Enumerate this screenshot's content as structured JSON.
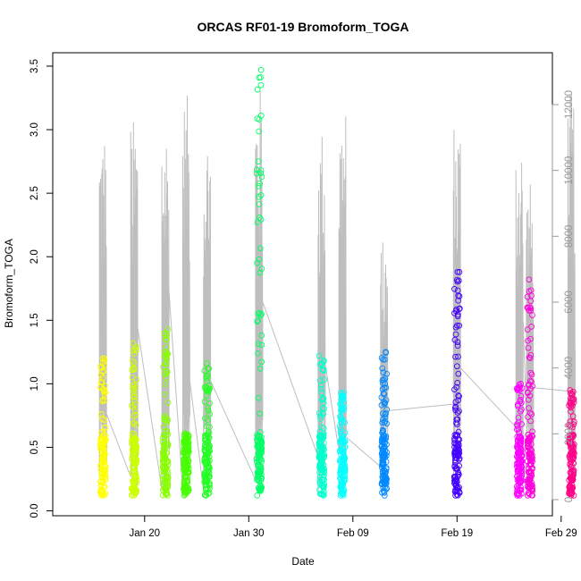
{
  "chart_data": {
    "type": "scatter",
    "title": "ORCAS RF01-19 Bromoform_TOGA",
    "xlabel": "Date",
    "ylabel": "Bromoform_TOGA",
    "x_ticks": [
      "Jan 20",
      "Jan 30",
      "Feb 09",
      "Feb 19",
      "Feb 29"
    ],
    "y_ticks": [
      "0.0",
      "0.5",
      "1.0",
      "1.5",
      "2.0",
      "2.5",
      "3.0",
      "3.5"
    ],
    "y_ticks_right": [
      "0",
      "2000",
      "4000",
      "6000",
      "8000",
      "10000",
      "12000"
    ],
    "ylim": [
      0,
      3.6
    ],
    "ylim_right": [
      0,
      12800
    ],
    "colors": {
      "altitude_trace": "#bebebe",
      "axis": "#000000",
      "right_axis": "#999999"
    },
    "series": [
      {
        "date": "Jan 16",
        "color": "#ffff00",
        "min": 0.12,
        "max": 1.2
      },
      {
        "date": "Jan 19",
        "color": "#ccff00",
        "min": 0.12,
        "max": 1.32
      },
      {
        "date": "Jan 22",
        "color": "#88ff00",
        "min": 0.12,
        "max": 1.43
      },
      {
        "date": "Jan 24",
        "color": "#44ff00",
        "min": 0.12,
        "max": 0.61
      },
      {
        "date": "Jan 26",
        "color": "#22ff22",
        "min": 0.12,
        "max": 1.16
      },
      {
        "date": "Jan 31",
        "color": "#00ff66",
        "min": 0.12,
        "max": 3.47
      },
      {
        "date": "Feb 06",
        "color": "#00ffcc",
        "min": 0.12,
        "max": 1.22
      },
      {
        "date": "Feb 08",
        "color": "#00ffff",
        "min": 0.12,
        "max": 0.93
      },
      {
        "date": "Feb 12",
        "color": "#0088ff",
        "min": 0.12,
        "max": 1.25
      },
      {
        "date": "Feb 19",
        "color": "#4400ff",
        "min": 0.12,
        "max": 1.88
      },
      {
        "date": "Feb 25",
        "color": "#ff00ff",
        "min": 0.12,
        "max": 1.0
      },
      {
        "date": "Feb 26",
        "color": "#ff00dd",
        "min": 0.12,
        "max": 1.82
      },
      {
        "date": "Mar 01",
        "color": "#ff0088",
        "min": 0.12,
        "max": 0.95
      }
    ]
  }
}
